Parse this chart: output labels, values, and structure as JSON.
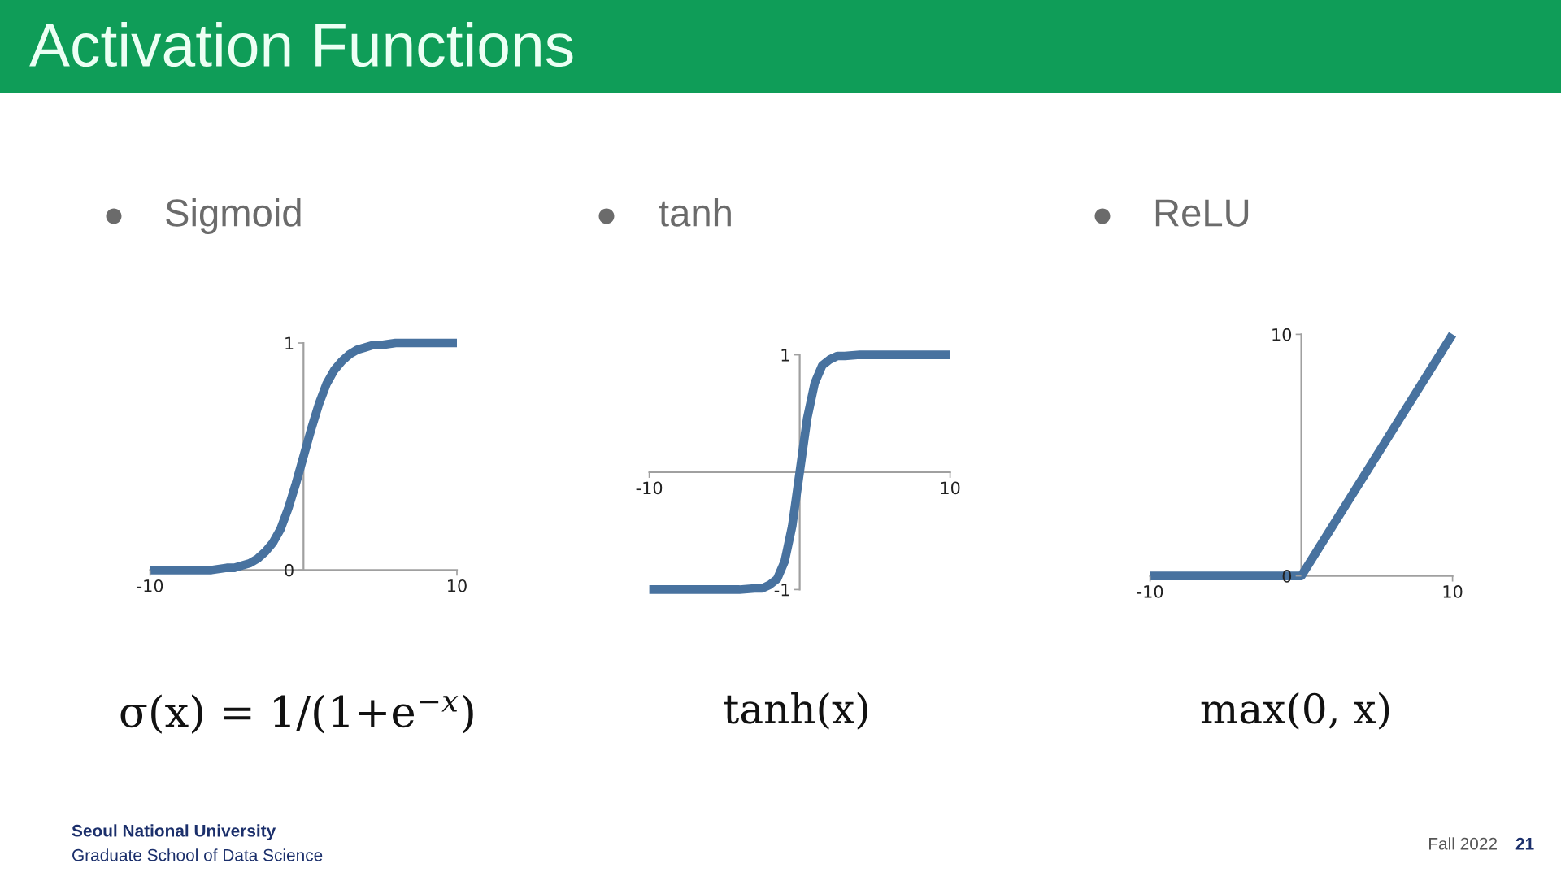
{
  "chart_data": [
    {
      "type": "line",
      "title": "Sigmoid",
      "x": [
        -10,
        -8,
        -6,
        -5,
        -4.5,
        -4,
        -3.5,
        -3,
        -2.5,
        -2,
        -1.5,
        -1,
        -0.5,
        0,
        0.5,
        1,
        1.5,
        2,
        2.5,
        3,
        3.5,
        4,
        4.5,
        5,
        6,
        8,
        10
      ],
      "series": [
        {
          "color": "#48729f",
          "values": [
            0.0,
            0.0,
            0.0,
            0.01,
            0.01,
            0.02,
            0.03,
            0.05,
            0.08,
            0.12,
            0.18,
            0.27,
            0.38,
            0.5,
            0.62,
            0.73,
            0.82,
            0.88,
            0.92,
            0.95,
            0.97,
            0.98,
            0.99,
            0.99,
            1.0,
            1.0,
            1.0
          ]
        }
      ],
      "xlim": [
        -10,
        10
      ],
      "ylim": [
        0,
        1
      ],
      "xticks": [
        -10,
        10
      ],
      "yticks": [
        0,
        1
      ],
      "annotations": [
        "Activation Functions",
        "σ(x) = 1/(1+e$^{−x}$)",
        "Seoul National University",
        "Graduate School of Data Science"
      ]
    },
    {
      "type": "line",
      "title": "tanh",
      "x": [
        -10,
        -6,
        -4,
        -3,
        -2.5,
        -2,
        -1.5,
        -1,
        -0.5,
        0,
        0.5,
        1,
        1.5,
        2,
        2.5,
        3,
        4,
        6,
        10
      ],
      "series": [
        {
          "color": "#48729f",
          "values": [
            -1.0,
            -1.0,
            -1.0,
            -0.99,
            -0.99,
            -0.96,
            -0.91,
            -0.76,
            -0.46,
            0.0,
            0.46,
            0.76,
            0.91,
            0.96,
            0.99,
            0.99,
            1.0,
            1.0,
            1.0
          ]
        }
      ],
      "xlim": [
        -10,
        10
      ],
      "ylim": [
        -1,
        1
      ],
      "xticks": [
        -10,
        10
      ],
      "yticks": [
        -1,
        1
      ],
      "annotations": [
        "tanh(x)"
      ]
    },
    {
      "type": "line",
      "title": "ReLU",
      "x": [
        -10,
        0,
        10
      ],
      "series": [
        {
          "color": "#48729f",
          "values": [
            0,
            0,
            10
          ]
        }
      ],
      "xlim": [
        -10,
        10
      ],
      "ylim": [
        0,
        10
      ],
      "xticks": [
        -10,
        10
      ],
      "yticks": [
        0,
        10
      ],
      "annotations": [
        "max(0, x)",
        "Fall 2022",
        "21"
      ]
    }
  ]
}
